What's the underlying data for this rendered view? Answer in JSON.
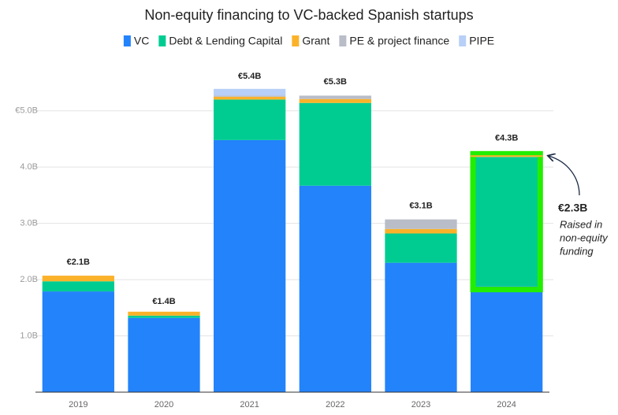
{
  "chart_data": {
    "type": "stacked_bar",
    "title": "Non-equity financing to VC-backed Spanish startups",
    "categories": [
      "2019",
      "2020",
      "2021",
      "2022",
      "2023",
      "2024"
    ],
    "series": [
      {
        "name": "VC",
        "color": "#2383fb",
        "values": [
          1.79,
          1.32,
          4.48,
          3.67,
          2.3,
          1.88
        ]
      },
      {
        "name": "Debt & Lending Capital",
        "color": "#00cc92",
        "values": [
          0.18,
          0.04,
          0.72,
          1.47,
          0.52,
          2.3
        ]
      },
      {
        "name": "Grant",
        "color": "#fbb22a",
        "values": [
          0.1,
          0.07,
          0.05,
          0.07,
          0.08,
          0.03
        ]
      },
      {
        "name": "PE & project finance",
        "color": "#b9bdc8",
        "values": [
          0,
          0,
          0.02,
          0.06,
          0.17,
          0
        ]
      },
      {
        "name": "PIPE",
        "color": "#b8d0f7",
        "values": [
          0,
          0,
          0.12,
          0,
          0,
          0
        ]
      }
    ],
    "total_labels": [
      {
        "value": 2.1,
        "label": "€2.1B"
      },
      {
        "value": 1.4,
        "label": "€1.4B"
      },
      {
        "value": 5.4,
        "label": "€5.4B"
      },
      {
        "value": 5.3,
        "label": "€5.3B"
      },
      {
        "value": 3.1,
        "label": "€3.1B"
      },
      {
        "value": 4.3,
        "label": "€4.3B"
      }
    ],
    "ylim": [
      0,
      5.5
    ],
    "yticks": [
      {
        "value": 1,
        "label": "1.0B"
      },
      {
        "value": 2,
        "label": "2.0B"
      },
      {
        "value": 3,
        "label": "3.0B"
      },
      {
        "value": 4,
        "label": "4.0B"
      },
      {
        "value": 5,
        "label": "€5.0B"
      }
    ],
    "grid": true,
    "highlight": {
      "category": 5,
      "series": 1,
      "color": "#22ee00"
    },
    "annotation": {
      "value": "€2.3B",
      "lines": [
        "Raised in",
        "non-equity",
        "funding"
      ]
    }
  }
}
